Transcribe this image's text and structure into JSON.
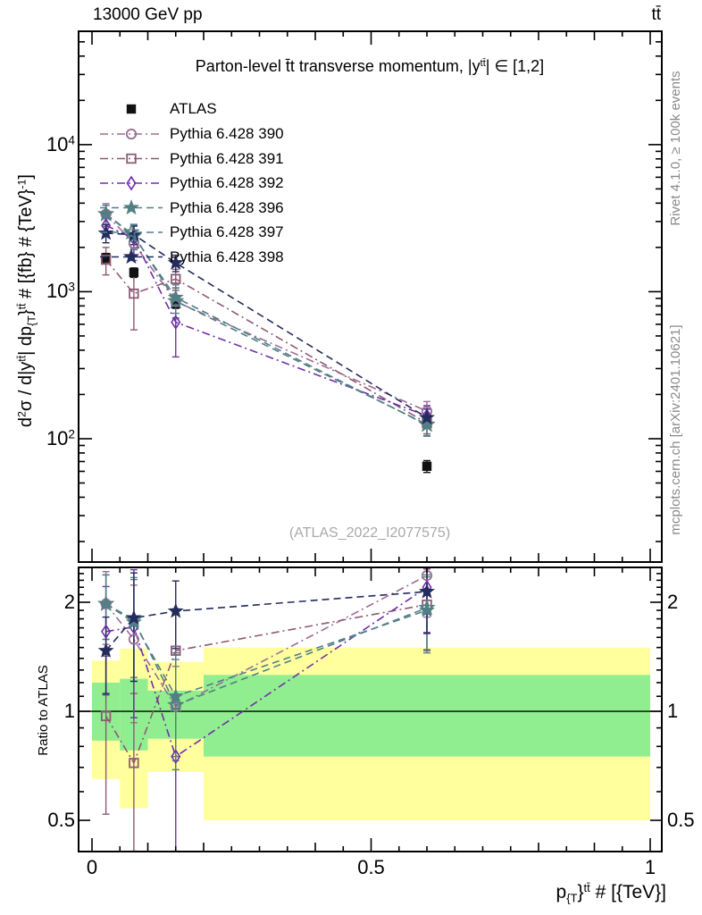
{
  "header": {
    "left": "13000 GeV pp",
    "right": "tt̄"
  },
  "side_notes": {
    "top": "Rivet 4.1.0, ≥ 100k events",
    "bottom": "mcplots.cern.ch [arXiv:2401.10621]"
  },
  "watermark": "(ATLAS_2022_I2077575)",
  "chart_data": {
    "type": "scatter",
    "title_tokens": [
      {
        "t": "Parton-level t̄t transverse momentum, |y"
      },
      {
        "sup": "tt̄"
      },
      {
        "t": "| ∈ [1,2]"
      }
    ],
    "x_axis": {
      "label_tokens": [
        {
          "t": "p"
        },
        {
          "sub": "{T"
        },
        {
          "t": "}"
        },
        {
          "sup": "tt̄"
        },
        {
          "t": " # [{TeV}]"
        }
      ],
      "min": -0.024,
      "max": 1.0208,
      "major_ticks": [
        {
          "v": 0,
          "label": "0"
        },
        {
          "v": 0.5,
          "label": "0.5"
        },
        {
          "v": 1,
          "label": "1"
        }
      ],
      "mid_step": 0.1,
      "minor_step": 0.05
    },
    "y_axis": {
      "label_tokens": [
        {
          "t": "d"
        },
        {
          "sup": "2"
        },
        {
          "t": "σ / d|y"
        },
        {
          "sup": "tt̄"
        },
        {
          "t": "| dp"
        },
        {
          "sub": "{T"
        },
        {
          "t": "}"
        },
        {
          "sup": "tt̄"
        },
        {
          "t": " # [{fb} # {TeV}"
        },
        {
          "sup": "-1"
        },
        {
          "t": "]"
        }
      ],
      "scale": "log",
      "min": 14.5,
      "max": 59000,
      "decade_labels": [
        {
          "v": 10000,
          "base": "10",
          "exp": "4"
        },
        {
          "v": 1000,
          "base": "10",
          "exp": "3"
        },
        {
          "v": 100,
          "base": "10",
          "exp": "2"
        }
      ]
    },
    "ratio_axis": {
      "label": "Ratio to ATLAS",
      "scale": "log",
      "min": 0.41,
      "max": 2.496,
      "labeled_ticks": [
        {
          "v": 2,
          "label": "2"
        },
        {
          "v": 1,
          "label": "1"
        },
        {
          "v": 0.5,
          "label": "0.5"
        }
      ],
      "minor_from": 0.5,
      "minor_to": 2.4,
      "minor_step": 0.1
    },
    "bins": {
      "x": [
        0.025,
        0.075,
        0.15,
        0.6
      ],
      "edges": [
        0,
        0.05,
        0.1,
        0.2,
        1.0
      ]
    },
    "reference": {
      "name": "ATLAS",
      "marker": "square-filled",
      "color": "#111111",
      "values": [
        1700,
        1350,
        830,
        65
      ],
      "errors": [
        120,
        100,
        60,
        6
      ]
    },
    "bands": {
      "yellow": {
        "color": "#ffff9e",
        "lo": [
          0.65,
          0.54,
          0.68,
          0.5
        ],
        "hi": [
          1.38,
          1.49,
          1.37,
          1.5
        ]
      },
      "green": {
        "color": "#90ee90",
        "lo": [
          0.83,
          0.78,
          0.84,
          0.75
        ],
        "hi": [
          1.2,
          1.23,
          1.14,
          1.26
        ]
      }
    },
    "series": [
      {
        "name": "Pythia 6.428 390",
        "color": "#9d6d96",
        "marker": "circle-open",
        "dash": "dashdot",
        "values": [
          3370,
          2130,
          855,
          154
        ],
        "errors": [
          600,
          500,
          200,
          25
        ],
        "ratio": [
          1.98,
          1.58,
          1.03,
          2.37
        ],
        "ratio_errors": [
          0.45,
          0.65,
          0.3,
          0.55
        ]
      },
      {
        "name": "Pythia 6.428 391",
        "color": "#8e5a74",
        "marker": "square-open",
        "dash": "dashdot",
        "values": [
          1650,
          970,
          1220,
          128
        ],
        "errors": [
          350,
          420,
          200,
          20
        ],
        "ratio": [
          0.97,
          0.72,
          1.47,
          1.97
        ],
        "ratio_errors": [
          0.45,
          0.4,
          0.45,
          0.5
        ]
      },
      {
        "name": "Pythia 6.428 392",
        "color": "#7030a8",
        "marker": "diamond-open",
        "dash": "dashdot",
        "values": [
          2820,
          2310,
          620,
          143
        ],
        "errors": [
          450,
          550,
          260,
          25
        ],
        "ratio": [
          1.66,
          1.71,
          0.75,
          2.2
        ],
        "ratio_errors": [
          0.55,
          0.75,
          0.35,
          0.55
        ]
      },
      {
        "name": "Pythia 6.428 396",
        "color": "#527f85",
        "marker": "star-filled",
        "dash": "dashed",
        "values": [
          3370,
          2380,
          913,
          124
        ],
        "errors": [
          500,
          450,
          200,
          20
        ],
        "ratio": [
          1.98,
          1.76,
          1.1,
          1.9
        ],
        "ratio_errors": [
          0.4,
          0.55,
          0.35,
          0.45
        ]
      },
      {
        "name": "Pythia 6.428 397",
        "color": "#527f85",
        "marker": "star-open",
        "dash": "dashed",
        "values": [
          3370,
          2420,
          863,
          125
        ],
        "errors": [
          500,
          450,
          200,
          20
        ],
        "ratio": [
          1.98,
          1.79,
          1.04,
          1.93
        ],
        "ratio_errors": [
          0.4,
          0.55,
          0.35,
          0.45
        ]
      },
      {
        "name": "Pythia 6.428 398",
        "color": "#232c5c",
        "marker": "star-filled",
        "dash": "dashed",
        "values": [
          2500,
          2440,
          1570,
          139
        ],
        "errors": [
          350,
          350,
          200,
          20
        ],
        "ratio": [
          1.47,
          1.81,
          1.89,
          2.14
        ],
        "ratio_errors": [
          0.35,
          0.6,
          0.4,
          0.5
        ]
      }
    ]
  }
}
